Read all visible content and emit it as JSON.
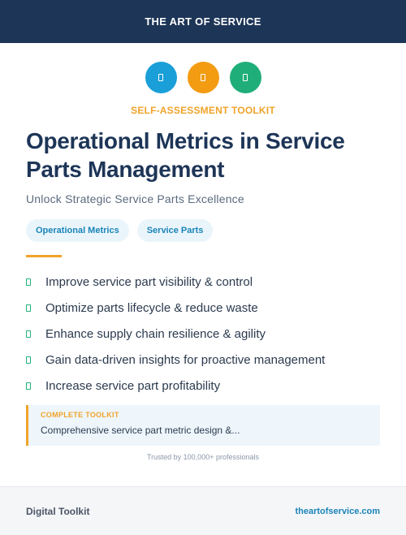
{
  "header": {
    "brand": "THE ART OF SERVICE"
  },
  "icons": [
    {
      "name": "document-icon",
      "color": "#1a9fd8"
    },
    {
      "name": "document-icon",
      "color": "#f39c12"
    },
    {
      "name": "document-icon",
      "color": "#1fae7a"
    }
  ],
  "kicker": "SELF-ASSESSMENT TOOLKIT",
  "title": "Operational Metrics in Service Parts Management",
  "subtitle": "Unlock Strategic Service Parts Excellence",
  "tags": [
    "Operational Metrics",
    "Service Parts"
  ],
  "bullets": [
    "Improve service part visibility & control",
    "Optimize parts lifecycle & reduce waste",
    "Enhance supply chain resilience & agility",
    "Gain data-driven insights for proactive management",
    "Increase service part profitability"
  ],
  "callout": {
    "label": "COMPLETE TOOLKIT",
    "text": "Comprehensive service part metric design &..."
  },
  "trusted": "Trusted by 100,000+ professionals",
  "footer": {
    "left": "Digital Toolkit",
    "right": "theartofservice.com"
  },
  "colors": {
    "navy": "#1d3557",
    "accent": "#f0a32a",
    "link": "#1a84b8",
    "check": "#21b07a"
  }
}
